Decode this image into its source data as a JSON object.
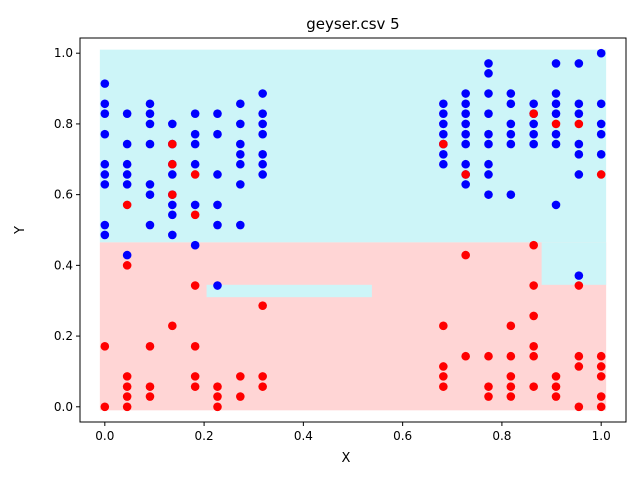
{
  "chart_data": {
    "type": "scatter",
    "title": "geyser.csv 5",
    "xlabel": "X",
    "ylabel": "Y",
    "xlim": [
      -0.05,
      1.05
    ],
    "ylim": [
      -0.043,
      1.043
    ],
    "xticks": [
      "0.0",
      "0.2",
      "0.4",
      "0.6",
      "0.8",
      "1.0"
    ],
    "yticks": [
      "0.0",
      "0.2",
      "0.4",
      "0.6",
      "0.8",
      "1.0"
    ],
    "grid": false,
    "legend": "none",
    "colors": {
      "class_blue": "#0000ff",
      "class_red": "#ff0000",
      "region_blue": "#cdf5f8",
      "region_red": "#ffd5d5"
    },
    "regions": [
      {
        "class": "blue",
        "x": [
          -0.01,
          1.01
        ],
        "y": [
          0.465,
          1.01
        ]
      },
      {
        "class": "red",
        "x": [
          -0.01,
          1.01
        ],
        "y": [
          -0.01,
          0.465
        ]
      },
      {
        "class": "blue",
        "x": [
          0.88,
          1.01
        ],
        "y": [
          0.345,
          0.465
        ]
      },
      {
        "class": "blue",
        "x": [
          0.205,
          0.538
        ],
        "y": [
          0.31,
          0.345
        ]
      }
    ],
    "series": [
      {
        "color": "blue",
        "points": [
          [
            0,
            0.914
          ],
          [
            0,
            0.857
          ],
          [
            0,
            0.829
          ],
          [
            0,
            0.771
          ],
          [
            0,
            0.686
          ],
          [
            0,
            0.657
          ],
          [
            0,
            0.629
          ],
          [
            0,
            0.514
          ],
          [
            0,
            0.486
          ],
          [
            0.045,
            0.829
          ],
          [
            0.045,
            0.743
          ],
          [
            0.045,
            0.686
          ],
          [
            0.045,
            0.657
          ],
          [
            0.045,
            0.629
          ],
          [
            0.045,
            0.429
          ],
          [
            0.091,
            0.857
          ],
          [
            0.091,
            0.829
          ],
          [
            0.091,
            0.8
          ],
          [
            0.091,
            0.743
          ],
          [
            0.091,
            0.629
          ],
          [
            0.091,
            0.6
          ],
          [
            0.091,
            0.514
          ],
          [
            0.136,
            0.8
          ],
          [
            0.136,
            0.743
          ],
          [
            0.136,
            0.686
          ],
          [
            0.136,
            0.657
          ],
          [
            0.136,
            0.6
          ],
          [
            0.136,
            0.571
          ],
          [
            0.136,
            0.543
          ],
          [
            0.136,
            0.486
          ],
          [
            0.182,
            0.829
          ],
          [
            0.182,
            0.771
          ],
          [
            0.182,
            0.743
          ],
          [
            0.182,
            0.686
          ],
          [
            0.182,
            0.571
          ],
          [
            0.182,
            0.457
          ],
          [
            0.227,
            0.829
          ],
          [
            0.227,
            0.771
          ],
          [
            0.227,
            0.657
          ],
          [
            0.227,
            0.571
          ],
          [
            0.227,
            0.514
          ],
          [
            0.227,
            0.343
          ],
          [
            0.273,
            0.857
          ],
          [
            0.273,
            0.8
          ],
          [
            0.273,
            0.743
          ],
          [
            0.273,
            0.714
          ],
          [
            0.273,
            0.686
          ],
          [
            0.273,
            0.629
          ],
          [
            0.273,
            0.514
          ],
          [
            0.318,
            0.886
          ],
          [
            0.318,
            0.829
          ],
          [
            0.318,
            0.8
          ],
          [
            0.318,
            0.771
          ],
          [
            0.318,
            0.714
          ],
          [
            0.318,
            0.686
          ],
          [
            0.318,
            0.657
          ],
          [
            0.682,
            0.857
          ],
          [
            0.682,
            0.829
          ],
          [
            0.682,
            0.8
          ],
          [
            0.682,
            0.771
          ],
          [
            0.682,
            0.743
          ],
          [
            0.682,
            0.714
          ],
          [
            0.682,
            0.686
          ],
          [
            0.727,
            0.886
          ],
          [
            0.727,
            0.857
          ],
          [
            0.727,
            0.829
          ],
          [
            0.727,
            0.8
          ],
          [
            0.727,
            0.771
          ],
          [
            0.727,
            0.743
          ],
          [
            0.727,
            0.686
          ],
          [
            0.727,
            0.657
          ],
          [
            0.727,
            0.629
          ],
          [
            0.773,
            0.971
          ],
          [
            0.773,
            0.943
          ],
          [
            0.773,
            0.886
          ],
          [
            0.773,
            0.829
          ],
          [
            0.773,
            0.771
          ],
          [
            0.773,
            0.743
          ],
          [
            0.773,
            0.686
          ],
          [
            0.773,
            0.657
          ],
          [
            0.773,
            0.6
          ],
          [
            0.818,
            0.886
          ],
          [
            0.818,
            0.857
          ],
          [
            0.818,
            0.8
          ],
          [
            0.818,
            0.771
          ],
          [
            0.818,
            0.743
          ],
          [
            0.818,
            0.6
          ],
          [
            0.864,
            0.857
          ],
          [
            0.864,
            0.829
          ],
          [
            0.864,
            0.8
          ],
          [
            0.864,
            0.771
          ],
          [
            0.864,
            0.743
          ],
          [
            0.909,
            0.971
          ],
          [
            0.909,
            0.886
          ],
          [
            0.909,
            0.857
          ],
          [
            0.909,
            0.829
          ],
          [
            0.909,
            0.771
          ],
          [
            0.909,
            0.743
          ],
          [
            0.909,
            0.571
          ],
          [
            0.955,
            0.971
          ],
          [
            0.955,
            0.857
          ],
          [
            0.955,
            0.829
          ],
          [
            0.955,
            0.743
          ],
          [
            0.955,
            0.714
          ],
          [
            0.955,
            0.657
          ],
          [
            0.955,
            0.371
          ],
          [
            1,
            1.0
          ],
          [
            1,
            0.857
          ],
          [
            1,
            0.8
          ],
          [
            1,
            0.771
          ],
          [
            1,
            0.714
          ]
        ]
      },
      {
        "color": "red",
        "points": [
          [
            0,
            0.171
          ],
          [
            0,
            0.0
          ],
          [
            0.045,
            0.571
          ],
          [
            0.045,
            0.4
          ],
          [
            0.045,
            0.086
          ],
          [
            0.045,
            0.057
          ],
          [
            0.045,
            0.029
          ],
          [
            0.045,
            0.0
          ],
          [
            0.091,
            0.171
          ],
          [
            0.091,
            0.057
          ],
          [
            0.091,
            0.029
          ],
          [
            0.136,
            0.743
          ],
          [
            0.136,
            0.686
          ],
          [
            0.136,
            0.6
          ],
          [
            0.136,
            0.229
          ],
          [
            0.182,
            0.657
          ],
          [
            0.182,
            0.543
          ],
          [
            0.182,
            0.343
          ],
          [
            0.182,
            0.171
          ],
          [
            0.182,
            0.086
          ],
          [
            0.182,
            0.057
          ],
          [
            0.227,
            0.057
          ],
          [
            0.227,
            0.029
          ],
          [
            0.227,
            0.0
          ],
          [
            0.273,
            0.086
          ],
          [
            0.273,
            0.029
          ],
          [
            0.318,
            0.286
          ],
          [
            0.318,
            0.086
          ],
          [
            0.318,
            0.057
          ],
          [
            0.682,
            0.743
          ],
          [
            0.682,
            0.229
          ],
          [
            0.682,
            0.114
          ],
          [
            0.682,
            0.086
          ],
          [
            0.682,
            0.057
          ],
          [
            0.727,
            0.657
          ],
          [
            0.727,
            0.429
          ],
          [
            0.727,
            0.143
          ],
          [
            0.773,
            0.143
          ],
          [
            0.773,
            0.057
          ],
          [
            0.773,
            0.029
          ],
          [
            0.818,
            0.229
          ],
          [
            0.818,
            0.143
          ],
          [
            0.818,
            0.086
          ],
          [
            0.818,
            0.057
          ],
          [
            0.818,
            0.029
          ],
          [
            0.864,
            0.829
          ],
          [
            0.864,
            0.457
          ],
          [
            0.864,
            0.343
          ],
          [
            0.864,
            0.257
          ],
          [
            0.864,
            0.171
          ],
          [
            0.864,
            0.143
          ],
          [
            0.864,
            0.057
          ],
          [
            0.909,
            0.8
          ],
          [
            0.909,
            0.086
          ],
          [
            0.909,
            0.057
          ],
          [
            0.909,
            0.029
          ],
          [
            0.955,
            0.8
          ],
          [
            0.955,
            0.343
          ],
          [
            0.955,
            0.143
          ],
          [
            0.955,
            0.114
          ],
          [
            0.955,
            0.0
          ],
          [
            1,
            0.657
          ],
          [
            1,
            0.143
          ],
          [
            1,
            0.114
          ],
          [
            1,
            0.086
          ],
          [
            1,
            0.029
          ],
          [
            1,
            0.0
          ]
        ]
      }
    ]
  }
}
